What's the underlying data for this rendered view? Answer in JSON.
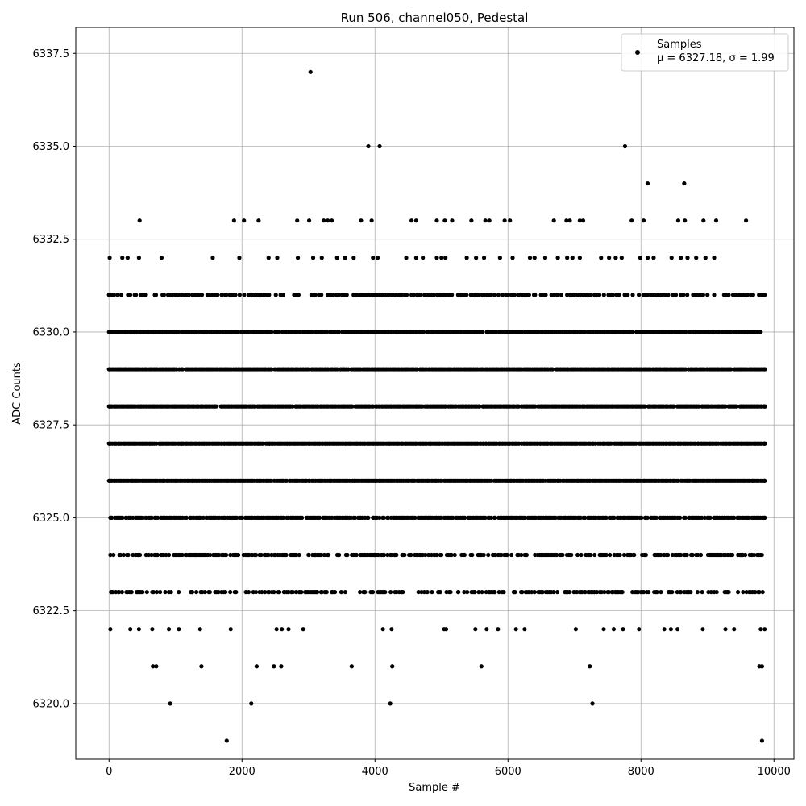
{
  "chart_data": {
    "type": "scatter",
    "title": "Run 506, channel050, Pedestal",
    "xlabel": "Sample #",
    "ylabel": "ADC Counts",
    "xlim": [
      -500,
      10300
    ],
    "ylim": [
      6318.5,
      6338.2
    ],
    "xticks": [
      0,
      2000,
      4000,
      6000,
      8000,
      10000
    ],
    "yticks": [
      6320.0,
      6322.5,
      6325.0,
      6327.5,
      6330.0,
      6332.5,
      6335.0,
      6337.5
    ],
    "grid": true,
    "legend": {
      "position": "top-right",
      "entries": [
        "Samples",
        "μ = 6327.18, σ = 1.99"
      ]
    },
    "marker_color": "#000000",
    "series": [
      {
        "name": "Samples",
        "points": [
          [
            3030,
            6337
          ],
          [
            3900,
            6335
          ],
          [
            4070,
            6335
          ],
          [
            7760,
            6335
          ],
          [
            8100,
            6334
          ],
          [
            8650,
            6334
          ],
          [
            460,
            6333
          ],
          [
            1880,
            6333
          ],
          [
            2030,
            6333
          ],
          [
            2250,
            6333
          ],
          [
            2830,
            6333
          ],
          [
            3010,
            6333
          ],
          [
            3230,
            6333
          ],
          [
            3290,
            6333
          ],
          [
            3350,
            6333
          ],
          [
            3790,
            6333
          ],
          [
            3950,
            6333
          ],
          [
            4550,
            6333
          ],
          [
            4620,
            6333
          ],
          [
            4930,
            6333
          ],
          [
            5050,
            6333
          ],
          [
            5160,
            6333
          ],
          [
            5450,
            6333
          ],
          [
            5660,
            6333
          ],
          [
            5720,
            6333
          ],
          [
            5950,
            6333
          ],
          [
            6030,
            6333
          ],
          [
            6690,
            6333
          ],
          [
            6880,
            6333
          ],
          [
            6930,
            6333
          ],
          [
            7080,
            6333
          ],
          [
            7130,
            6333
          ],
          [
            7860,
            6333
          ],
          [
            8040,
            6333
          ],
          [
            8560,
            6333
          ],
          [
            8660,
            6333
          ],
          [
            8940,
            6333
          ],
          [
            9130,
            6333
          ],
          [
            9580,
            6333
          ],
          [
            10,
            6332
          ],
          [
            200,
            6332
          ],
          [
            280,
            6332
          ],
          [
            450,
            6332
          ],
          [
            790,
            6332
          ],
          [
            1560,
            6332
          ],
          [
            1960,
            6332
          ],
          [
            2400,
            6332
          ],
          [
            2530,
            6332
          ],
          [
            2840,
            6332
          ],
          [
            3070,
            6332
          ],
          [
            3200,
            6332
          ],
          [
            3430,
            6332
          ],
          [
            3550,
            6332
          ],
          [
            3680,
            6332
          ],
          [
            3970,
            6332
          ],
          [
            4040,
            6332
          ],
          [
            4470,
            6332
          ],
          [
            4620,
            6332
          ],
          [
            4720,
            6332
          ],
          [
            4930,
            6332
          ],
          [
            5000,
            6332
          ],
          [
            5060,
            6332
          ],
          [
            5380,
            6332
          ],
          [
            5520,
            6332
          ],
          [
            5640,
            6332
          ],
          [
            5880,
            6332
          ],
          [
            6070,
            6332
          ],
          [
            6330,
            6332
          ],
          [
            6400,
            6332
          ],
          [
            6560,
            6332
          ],
          [
            6750,
            6332
          ],
          [
            6890,
            6332
          ],
          [
            6970,
            6332
          ],
          [
            7080,
            6332
          ],
          [
            7400,
            6332
          ],
          [
            7520,
            6332
          ],
          [
            7620,
            6332
          ],
          [
            7710,
            6332
          ],
          [
            7990,
            6332
          ],
          [
            8100,
            6332
          ],
          [
            8190,
            6332
          ],
          [
            8460,
            6332
          ],
          [
            8600,
            6332
          ],
          [
            8700,
            6332
          ],
          [
            8830,
            6332
          ],
          [
            8970,
            6332
          ],
          [
            9100,
            6332
          ],
          [
            0,
            6331
          ],
          [
            130,
            6331
          ],
          [
            300,
            6331
          ],
          [
            500,
            6331
          ],
          [
            700,
            6331
          ],
          [
            950,
            6331
          ],
          [
            1200,
            6331
          ],
          [
            1480,
            6331
          ],
          [
            1700,
            6331
          ],
          [
            1900,
            6331
          ],
          [
            2100,
            6331
          ],
          [
            2300,
            6331
          ],
          [
            2620,
            6331
          ],
          [
            2850,
            6331
          ],
          [
            3100,
            6331
          ],
          [
            3300,
            6331
          ],
          [
            3550,
            6331
          ],
          [
            3800,
            6331
          ],
          [
            4000,
            6331
          ],
          [
            4300,
            6331
          ],
          [
            4550,
            6331
          ],
          [
            4800,
            6331
          ],
          [
            5000,
            6331
          ],
          [
            5250,
            6331
          ],
          [
            5500,
            6331
          ],
          [
            5800,
            6331
          ],
          [
            6000,
            6331
          ],
          [
            6250,
            6331
          ],
          [
            6500,
            6331
          ],
          [
            6750,
            6331
          ],
          [
            7000,
            6331
          ],
          [
            7300,
            6331
          ],
          [
            7550,
            6331
          ],
          [
            7800,
            6331
          ],
          [
            8050,
            6331
          ],
          [
            8300,
            6331
          ],
          [
            8600,
            6331
          ],
          [
            8850,
            6331
          ],
          [
            9100,
            6331
          ],
          [
            9400,
            6331
          ],
          [
            9650,
            6331
          ],
          [
            9860,
            6331
          ],
          [
            0,
            6330
          ],
          [
            9800,
            6330
          ],
          [
            0,
            6329
          ],
          [
            9860,
            6329
          ],
          [
            0,
            6328
          ],
          [
            9860,
            6328
          ],
          [
            0,
            6327
          ],
          [
            9860,
            6327
          ],
          [
            0,
            6326
          ],
          [
            9860,
            6326
          ],
          [
            20,
            6325
          ],
          [
            9860,
            6325
          ],
          [
            20,
            6324
          ],
          [
            220,
            6324
          ],
          [
            450,
            6324
          ],
          [
            700,
            6324
          ],
          [
            1000,
            6324
          ],
          [
            1300,
            6324
          ],
          [
            1600,
            6324
          ],
          [
            1900,
            6324
          ],
          [
            2200,
            6324
          ],
          [
            2500,
            6324
          ],
          [
            2800,
            6324
          ],
          [
            3100,
            6324
          ],
          [
            3450,
            6324
          ],
          [
            3700,
            6324
          ],
          [
            4000,
            6324
          ],
          [
            4300,
            6324
          ],
          [
            4600,
            6324
          ],
          [
            4900,
            6324
          ],
          [
            5200,
            6324
          ],
          [
            5600,
            6324
          ],
          [
            5900,
            6324
          ],
          [
            6200,
            6324
          ],
          [
            6500,
            6324
          ],
          [
            6800,
            6324
          ],
          [
            7100,
            6324
          ],
          [
            7400,
            6324
          ],
          [
            7850,
            6324
          ],
          [
            8050,
            6324
          ],
          [
            8300,
            6324
          ],
          [
            8600,
            6324
          ],
          [
            8900,
            6324
          ],
          [
            9200,
            6324
          ],
          [
            9500,
            6324
          ],
          [
            9800,
            6324
          ],
          [
            30,
            6323
          ],
          [
            150,
            6323
          ],
          [
            450,
            6323
          ],
          [
            650,
            6323
          ],
          [
            900,
            6323
          ],
          [
            1250,
            6323
          ],
          [
            1500,
            6323
          ],
          [
            1750,
            6323
          ],
          [
            2100,
            6323
          ],
          [
            2450,
            6323
          ],
          [
            2700,
            6323
          ],
          [
            2950,
            6323
          ],
          [
            3200,
            6323
          ],
          [
            3350,
            6323
          ],
          [
            3850,
            6323
          ],
          [
            4130,
            6323
          ],
          [
            4400,
            6323
          ],
          [
            4700,
            6323
          ],
          [
            4950,
            6323
          ],
          [
            5250,
            6323
          ],
          [
            5500,
            6323
          ],
          [
            5800,
            6323
          ],
          [
            6100,
            6323
          ],
          [
            6400,
            6323
          ],
          [
            6650,
            6323
          ],
          [
            7150,
            6323
          ],
          [
            7300,
            6323
          ],
          [
            7570,
            6323
          ],
          [
            7720,
            6323
          ],
          [
            7950,
            6323
          ],
          [
            8300,
            6323
          ],
          [
            8600,
            6323
          ],
          [
            8850,
            6323
          ],
          [
            9100,
            6323
          ],
          [
            9300,
            6323
          ],
          [
            9650,
            6323
          ],
          [
            9830,
            6323
          ],
          [
            20,
            6322
          ],
          [
            320,
            6322
          ],
          [
            450,
            6322
          ],
          [
            650,
            6322
          ],
          [
            900,
            6322
          ],
          [
            1050,
            6322
          ],
          [
            1370,
            6322
          ],
          [
            1830,
            6322
          ],
          [
            2520,
            6322
          ],
          [
            2600,
            6322
          ],
          [
            2700,
            6322
          ],
          [
            2920,
            6322
          ],
          [
            4120,
            6322
          ],
          [
            4250,
            6322
          ],
          [
            5040,
            6322
          ],
          [
            5070,
            6322
          ],
          [
            5510,
            6322
          ],
          [
            5680,
            6322
          ],
          [
            5850,
            6322
          ],
          [
            6120,
            6322
          ],
          [
            6250,
            6322
          ],
          [
            7020,
            6322
          ],
          [
            7440,
            6322
          ],
          [
            7590,
            6322
          ],
          [
            7730,
            6322
          ],
          [
            7970,
            6322
          ],
          [
            8350,
            6322
          ],
          [
            8450,
            6322
          ],
          [
            8550,
            6322
          ],
          [
            8930,
            6322
          ],
          [
            9270,
            6322
          ],
          [
            9400,
            6322
          ],
          [
            9800,
            6322
          ],
          [
            9860,
            6322
          ],
          [
            660,
            6321
          ],
          [
            710,
            6321
          ],
          [
            1390,
            6321
          ],
          [
            2220,
            6321
          ],
          [
            2480,
            6321
          ],
          [
            2590,
            6321
          ],
          [
            3650,
            6321
          ],
          [
            4260,
            6321
          ],
          [
            5600,
            6321
          ],
          [
            7230,
            6321
          ],
          [
            9780,
            6321
          ],
          [
            9820,
            6321
          ],
          [
            920,
            6320
          ],
          [
            2140,
            6320
          ],
          [
            4230,
            6320
          ],
          [
            7270,
            6320
          ],
          [
            1770,
            6319
          ],
          [
            9820,
            6319
          ]
        ],
        "band_segments": [
          {
            "y": 6331,
            "from": 0,
            "to": 9860,
            "density": 0.45
          },
          {
            "y": 6330,
            "from": 0,
            "to": 9800,
            "density": 0.92
          },
          {
            "y": 6329,
            "from": 0,
            "to": 9860,
            "density": 0.97
          },
          {
            "y": 6328,
            "from": 0,
            "to": 9860,
            "density": 0.97
          },
          {
            "y": 6327,
            "from": 0,
            "to": 9860,
            "density": 0.99
          },
          {
            "y": 6326,
            "from": 0,
            "to": 9860,
            "density": 0.98
          },
          {
            "y": 6325,
            "from": 20,
            "to": 9860,
            "density": 0.9
          },
          {
            "y": 6324,
            "from": 20,
            "to": 9830,
            "density": 0.55
          },
          {
            "y": 6323,
            "from": 30,
            "to": 9830,
            "density": 0.4
          }
        ]
      }
    ]
  }
}
